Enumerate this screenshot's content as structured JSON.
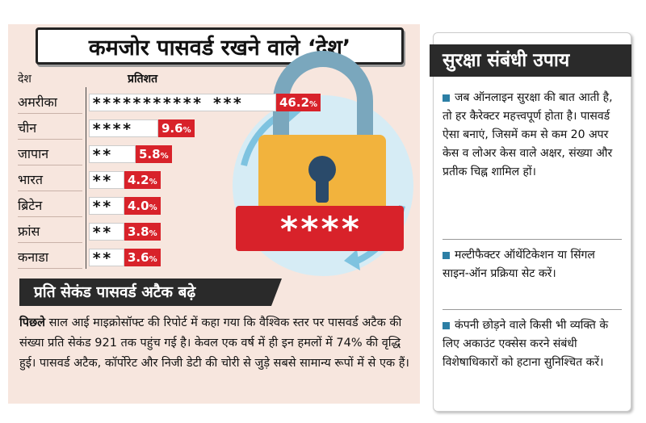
{
  "title": "कमजोर पासवर्ड रखने वाले ‘देश’",
  "table": {
    "col_country": "देश",
    "col_percent": "प्रतिशत",
    "rows": [
      {
        "country": "अमरीका",
        "stars": "***********  ***",
        "value": "46.2",
        "unit": "%"
      },
      {
        "country": "चीन",
        "stars": "****",
        "value": "9.6",
        "unit": "%"
      },
      {
        "country": "जापान",
        "stars": "**",
        "value": "5.8",
        "unit": "%"
      },
      {
        "country": "भारत",
        "stars": "**",
        "value": "4.2",
        "unit": "%"
      },
      {
        "country": "ब्रिटेन",
        "stars": "**",
        "value": "4.0",
        "unit": "%"
      },
      {
        "country": "फ्रांस",
        "stars": "**",
        "value": "3.8",
        "unit": "%"
      },
      {
        "country": "कनाडा",
        "stars": "**",
        "value": "3.6",
        "unit": "%"
      }
    ]
  },
  "lock_code": "****",
  "attack": {
    "heading": "प्रति सेकंड पासवर्ड अटैक बढ़े",
    "lead": "पिछले",
    "text": " साल आई माइक्रोसॉफ्ट की रिपोर्ट में कहा गया कि वैश्विक स्तर पर पासवर्ड अटैक की संख्या प्रति सेकंड 921 तक पहुंच गई है। केवल एक वर्ष में ही इन हमलों में 74% की वृद्धि हुई। पासवर्ड अटैक, कॉर्पोरेट और निजी डेटी की चोरी से जुड़े सबसे सामान्य रूपों में से एक हैं।"
  },
  "security": {
    "heading": "सुरक्षा संबंधी उपाय",
    "tips": [
      "जब ऑनलाइन सुरक्षा की बात आती है, तो हर कैरेक्टर महत्त्वपूर्ण होता है। पासवर्ड ऐसा बनाएं, जिसमें कम से कम 20 अपर केस व लोअर केस वाले अक्षर, संख्या और प्रतीक चिह्न शामिल हों।",
      "मल्टीफैक्टर ऑथेंटिकेशन या सिंगल साइन-ऑन प्रक्रिया सेट करें।",
      "कंपनी छोड़ने वाले किसी भी व्यक्ति के लिए अकाउंट एक्सेस करने संबंधी विशेषाधिकारों को हटाना सुनिश्चित करें।"
    ]
  },
  "colors": {
    "accent_red": "#d8222a",
    "panel_pink": "#f7e6de",
    "bullet_blue": "#2c7fa5",
    "lock_yellow": "#f2b33d"
  }
}
